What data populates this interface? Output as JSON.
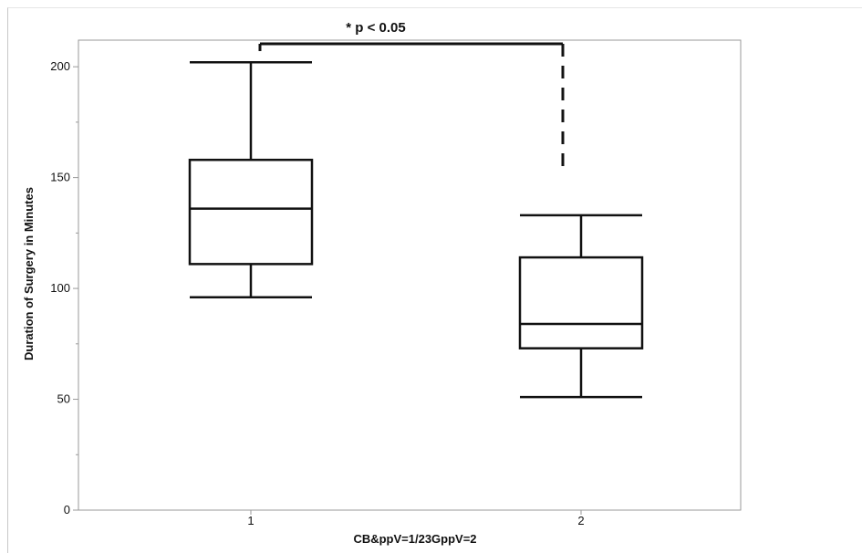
{
  "chart_data": {
    "type": "boxplot",
    "title": "",
    "xlabel": "CB&ppV=1/23GppV=2",
    "ylabel": "Duration of Surgery in Minutes",
    "ylim": [
      0,
      212
    ],
    "yticks": [
      0,
      50,
      100,
      150,
      200
    ],
    "categories": [
      "1",
      "2"
    ],
    "boxes": [
      {
        "category": "1",
        "whisker_low": 96,
        "q1": 111,
        "median": 136,
        "q3": 158,
        "whisker_high": 202
      },
      {
        "category": "2",
        "whisker_low": 51,
        "q1": 73,
        "median": 84,
        "q3": 114,
        "whisker_high": 133
      }
    ],
    "annotation": {
      "text": "* p < 0.05",
      "between": [
        "1",
        "2"
      ],
      "style": "bracket, right leg dashed"
    },
    "grid": false,
    "colors": {
      "box_stroke": "#111111",
      "axis": "#999999",
      "background": "#ffffff"
    }
  }
}
